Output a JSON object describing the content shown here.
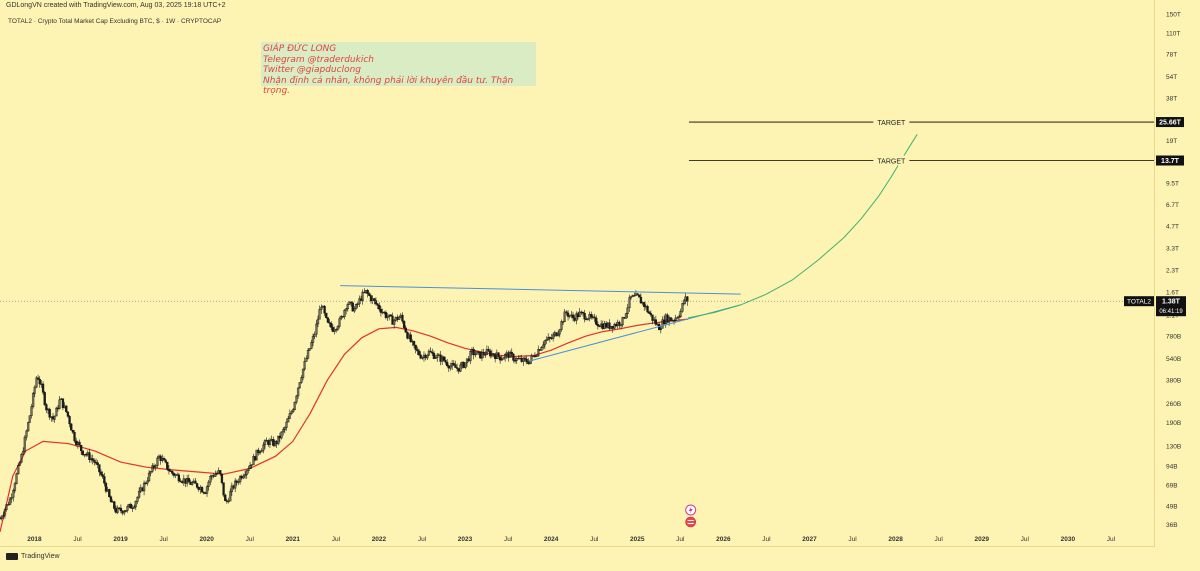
{
  "header": {
    "attribution": "GDLongVN created with TradingView.com, Aug 03, 2025 19:18 UTC+2",
    "symbol_title": "TOTAL2 · Crypto Total Market Cap Excluding BTC, $ · 1W · CRYPTOCAP"
  },
  "note": {
    "lines": [
      "GIÁP ĐỨC LONG",
      "Telegram @traderdukich",
      "Twitter @giapduclong",
      "Nhận định cá nhân, không phải lời khuyên đầu tư. Thận trọng."
    ],
    "color": "#e03a3a"
  },
  "footer": {
    "brand": "TradingView"
  },
  "colors": {
    "background": "#fdf3b3",
    "candle_up": "#1a1a1a",
    "candle_down": "#1a1a1a",
    "moving_average": "#e0342a",
    "trendline": "#4a90d9",
    "projection": "#3cb371",
    "target_line": "#000000",
    "price_tag_bg": "#111111",
    "price_tag_fg": "#ffffff"
  },
  "chart_data": {
    "type": "line",
    "scale": "log",
    "title": "TOTAL2 · Crypto Total Market Cap Excluding BTC, $ · 1W · CRYPTOCAP",
    "symbol_label": "TOTAL2",
    "current_value_label": "1.38T",
    "countdown_label": "06:41:19",
    "y_ticks": [
      "150T",
      "110T",
      "78T",
      "54T",
      "38T",
      "27T",
      "19T",
      "13.7T",
      "9.5T",
      "6.7T",
      "4.7T",
      "3.3T",
      "2.3T",
      "1.6T",
      "1.1T",
      "780B",
      "540B",
      "380B",
      "260B",
      "190B",
      "130B",
      "94B",
      "69B",
      "49B",
      "36B"
    ],
    "y_tick_values": [
      150,
      110,
      78,
      54,
      38,
      27,
      19,
      13.7,
      9.5,
      6.7,
      4.7,
      3.3,
      2.3,
      1.6,
      1.1,
      0.78,
      0.54,
      0.38,
      0.26,
      0.19,
      0.13,
      0.094,
      0.069,
      0.049,
      0.036
    ],
    "y_unit": "T",
    "x_ticks": [
      {
        "label": "2018",
        "t": 2018.0
      },
      {
        "label": "Jul",
        "t": 2018.5
      },
      {
        "label": "2019",
        "t": 2019.0
      },
      {
        "label": "Jul",
        "t": 2019.5
      },
      {
        "label": "2020",
        "t": 2020.0
      },
      {
        "label": "Jul",
        "t": 2020.5
      },
      {
        "label": "2021",
        "t": 2021.0
      },
      {
        "label": "Jul",
        "t": 2021.5
      },
      {
        "label": "2022",
        "t": 2022.0
      },
      {
        "label": "Jul",
        "t": 2022.5
      },
      {
        "label": "2023",
        "t": 2023.0
      },
      {
        "label": "Jul",
        "t": 2023.5
      },
      {
        "label": "2024",
        "t": 2024.0
      },
      {
        "label": "Jul",
        "t": 2024.5
      },
      {
        "label": "2025",
        "t": 2025.0
      },
      {
        "label": "Jul",
        "t": 2025.5
      },
      {
        "label": "2026",
        "t": 2026.0
      },
      {
        "label": "Jul",
        "t": 2026.5
      },
      {
        "label": "2027",
        "t": 2027.0
      },
      {
        "label": "Jul",
        "t": 2027.5
      },
      {
        "label": "2028",
        "t": 2028.0
      },
      {
        "label": "Jul",
        "t": 2028.5
      },
      {
        "label": "2029",
        "t": 2029.0
      },
      {
        "label": "Jul",
        "t": 2029.5
      },
      {
        "label": "2030",
        "t": 2030.0
      },
      {
        "label": "Jul",
        "t": 2030.5
      }
    ],
    "series": [
      {
        "kind": "price",
        "points": [
          [
            2017.6,
            0.04
          ],
          [
            2017.72,
            0.055
          ],
          [
            2017.85,
            0.11
          ],
          [
            2017.95,
            0.22
          ],
          [
            2018.03,
            0.42
          ],
          [
            2018.08,
            0.34
          ],
          [
            2018.14,
            0.24
          ],
          [
            2018.22,
            0.2
          ],
          [
            2018.3,
            0.28
          ],
          [
            2018.38,
            0.22
          ],
          [
            2018.46,
            0.15
          ],
          [
            2018.55,
            0.12
          ],
          [
            2018.63,
            0.11
          ],
          [
            2018.7,
            0.1
          ],
          [
            2018.8,
            0.075
          ],
          [
            2018.88,
            0.053
          ],
          [
            2018.95,
            0.045
          ],
          [
            2019.05,
            0.046
          ],
          [
            2019.15,
            0.05
          ],
          [
            2019.25,
            0.065
          ],
          [
            2019.35,
            0.085
          ],
          [
            2019.45,
            0.11
          ],
          [
            2019.5,
            0.1
          ],
          [
            2019.58,
            0.085
          ],
          [
            2019.68,
            0.078
          ],
          [
            2019.78,
            0.072
          ],
          [
            2019.9,
            0.068
          ],
          [
            2019.98,
            0.062
          ],
          [
            2020.05,
            0.08
          ],
          [
            2020.15,
            0.085
          ],
          [
            2020.22,
            0.05
          ],
          [
            2020.3,
            0.066
          ],
          [
            2020.4,
            0.08
          ],
          [
            2020.5,
            0.095
          ],
          [
            2020.6,
            0.12
          ],
          [
            2020.7,
            0.14
          ],
          [
            2020.8,
            0.135
          ],
          [
            2020.9,
            0.17
          ],
          [
            2021.0,
            0.24
          ],
          [
            2021.08,
            0.38
          ],
          [
            2021.16,
            0.55
          ],
          [
            2021.25,
            0.8
          ],
          [
            2021.33,
            1.32
          ],
          [
            2021.4,
            0.95
          ],
          [
            2021.47,
            0.88
          ],
          [
            2021.55,
            1.0
          ],
          [
            2021.63,
            1.35
          ],
          [
            2021.72,
            1.2
          ],
          [
            2021.8,
            1.5
          ],
          [
            2021.85,
            1.6
          ],
          [
            2021.92,
            1.42
          ],
          [
            2022.0,
            1.25
          ],
          [
            2022.08,
            1.1
          ],
          [
            2022.16,
            1.0
          ],
          [
            2022.25,
            1.08
          ],
          [
            2022.33,
            0.8
          ],
          [
            2022.42,
            0.62
          ],
          [
            2022.5,
            0.56
          ],
          [
            2022.58,
            0.6
          ],
          [
            2022.67,
            0.56
          ],
          [
            2022.75,
            0.53
          ],
          [
            2022.83,
            0.48
          ],
          [
            2022.92,
            0.46
          ],
          [
            2023.0,
            0.5
          ],
          [
            2023.08,
            0.6
          ],
          [
            2023.17,
            0.57
          ],
          [
            2023.25,
            0.6
          ],
          [
            2023.33,
            0.58
          ],
          [
            2023.42,
            0.55
          ],
          [
            2023.5,
            0.58
          ],
          [
            2023.58,
            0.54
          ],
          [
            2023.67,
            0.52
          ],
          [
            2023.75,
            0.52
          ],
          [
            2023.83,
            0.6
          ],
          [
            2023.92,
            0.72
          ],
          [
            2024.0,
            0.75
          ],
          [
            2024.08,
            0.85
          ],
          [
            2024.17,
            1.15
          ],
          [
            2024.25,
            1.05
          ],
          [
            2024.33,
            1.12
          ],
          [
            2024.42,
            1.08
          ],
          [
            2024.5,
            1.0
          ],
          [
            2024.58,
            0.94
          ],
          [
            2024.67,
            0.92
          ],
          [
            2024.75,
            0.95
          ],
          [
            2024.83,
            1.0
          ],
          [
            2024.92,
            1.45
          ],
          [
            2025.0,
            1.48
          ],
          [
            2025.08,
            1.3
          ],
          [
            2025.17,
            1.05
          ],
          [
            2025.25,
            0.9
          ],
          [
            2025.33,
            1.05
          ],
          [
            2025.42,
            1.02
          ],
          [
            2025.5,
            1.15
          ],
          [
            2025.55,
            1.45
          ],
          [
            2025.59,
            1.38
          ]
        ]
      },
      {
        "kind": "moving_average",
        "points": [
          [
            2017.6,
            0.032
          ],
          [
            2017.75,
            0.08
          ],
          [
            2017.9,
            0.12
          ],
          [
            2018.1,
            0.14
          ],
          [
            2018.4,
            0.135
          ],
          [
            2018.7,
            0.12
          ],
          [
            2019.0,
            0.1
          ],
          [
            2019.3,
            0.092
          ],
          [
            2019.6,
            0.088
          ],
          [
            2019.9,
            0.085
          ],
          [
            2020.2,
            0.082
          ],
          [
            2020.5,
            0.09
          ],
          [
            2020.8,
            0.11
          ],
          [
            2021.0,
            0.14
          ],
          [
            2021.2,
            0.22
          ],
          [
            2021.4,
            0.38
          ],
          [
            2021.6,
            0.58
          ],
          [
            2021.8,
            0.76
          ],
          [
            2022.0,
            0.88
          ],
          [
            2022.2,
            0.9
          ],
          [
            2022.4,
            0.85
          ],
          [
            2022.6,
            0.78
          ],
          [
            2022.8,
            0.7
          ],
          [
            2023.0,
            0.64
          ],
          [
            2023.2,
            0.6
          ],
          [
            2023.4,
            0.57
          ],
          [
            2023.6,
            0.56
          ],
          [
            2023.8,
            0.57
          ],
          [
            2024.0,
            0.62
          ],
          [
            2024.2,
            0.7
          ],
          [
            2024.4,
            0.78
          ],
          [
            2024.6,
            0.84
          ],
          [
            2024.8,
            0.88
          ],
          [
            2025.0,
            0.93
          ],
          [
            2025.2,
            0.97
          ],
          [
            2025.4,
            1.0
          ],
          [
            2025.59,
            1.03
          ]
        ]
      }
    ],
    "trendlines": [
      {
        "name": "resistance",
        "from": [
          2021.55,
          1.78
        ],
        "to": [
          2026.2,
          1.55
        ]
      },
      {
        "name": "support",
        "from": [
          2023.75,
          0.52
        ],
        "to": [
          2026.2,
          1.3
        ]
      }
    ],
    "projection": [
      [
        2025.59,
        1.05
      ],
      [
        2025.9,
        1.15
      ],
      [
        2026.2,
        1.3
      ],
      [
        2026.5,
        1.55
      ],
      [
        2026.8,
        1.95
      ],
      [
        2027.1,
        2.7
      ],
      [
        2027.4,
        3.9
      ],
      [
        2027.6,
        5.3
      ],
      [
        2027.8,
        7.6
      ],
      [
        2027.95,
        10.5
      ],
      [
        2028.1,
        15.0
      ],
      [
        2028.25,
        21.0
      ]
    ],
    "targets": [
      {
        "label": "TARGET",
        "value": 25.66,
        "tag": "25.66T"
      },
      {
        "label": "TARGET",
        "value": 13.7,
        "tag": "13.7T"
      }
    ],
    "ylim": [
      0.033,
      165
    ],
    "xlim": [
      2017.6,
      2031.0
    ],
    "legend": "none",
    "grid": false
  }
}
